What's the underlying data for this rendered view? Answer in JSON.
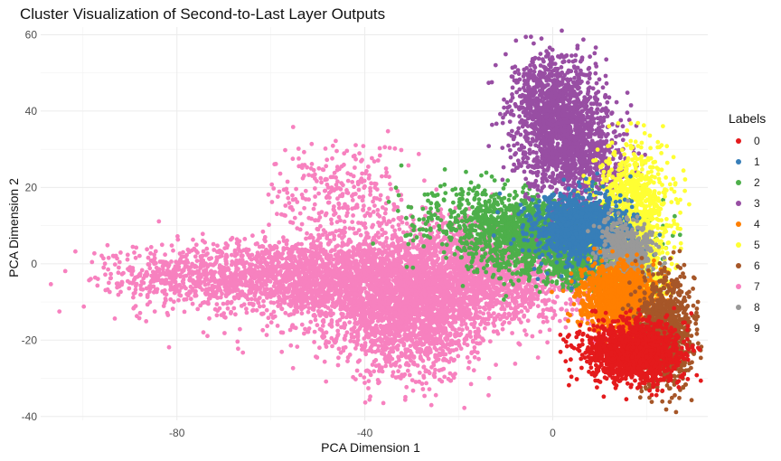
{
  "chart_data": {
    "type": "scatter",
    "title": "Cluster Visualization of Second-to-Last Layer Outputs",
    "xlabel": "PCA Dimension 1",
    "ylabel": "PCA Dimension 2",
    "xlim": [
      -109,
      33
    ],
    "ylim": [
      -41,
      62
    ],
    "x_ticks": [
      -80,
      -40,
      0
    ],
    "y_ticks": [
      -40,
      -20,
      0,
      20,
      40,
      60
    ],
    "grid": true,
    "legend": {
      "title": "Labels",
      "placement": "right",
      "entries": [
        "0",
        "1",
        "2",
        "3",
        "4",
        "5",
        "6",
        "7",
        "8",
        "9"
      ]
    },
    "colors": {
      "0": "#E41A1C",
      "1": "#377EB8",
      "2": "#4DAF4A",
      "3": "#984EA3",
      "4": "#FF7F00",
      "5": "#FFFF33",
      "6": "#A65628",
      "7": "#F781BF",
      "8": "#999999",
      "9": "#FFFFFF"
    },
    "series": [
      {
        "name": "7",
        "clusters": [
          {
            "cx": -60,
            "cy": -3,
            "sx": 14,
            "sy": 4.5,
            "n": 1300
          },
          {
            "cx": -35,
            "cy": -6,
            "sx": 13,
            "sy": 7,
            "n": 2200
          },
          {
            "cx": -30,
            "cy": -17,
            "sx": 7,
            "sy": 7,
            "n": 900
          },
          {
            "cx": -15,
            "cy": -4,
            "sx": 12,
            "sy": 6,
            "n": 1300
          },
          {
            "cx": -45,
            "cy": 18,
            "sx": 7,
            "sy": 7,
            "n": 280
          },
          {
            "cx": -80,
            "cy": -4,
            "sx": 9,
            "sy": 4,
            "n": 200
          },
          {
            "cx": -18,
            "cy": 5,
            "sx": 8,
            "sy": 5,
            "n": 300
          }
        ]
      },
      {
        "name": "2",
        "clusters": [
          {
            "cx": -2,
            "cy": 7,
            "sx": 9,
            "sy": 5,
            "n": 1500
          },
          {
            "cx": 8,
            "cy": -1,
            "sx": 5,
            "sy": 3,
            "n": 400
          },
          {
            "cx": -15,
            "cy": 13,
            "sx": 8,
            "sy": 4,
            "n": 250
          }
        ]
      },
      {
        "name": "3",
        "clusters": [
          {
            "cx": 2,
            "cy": 36,
            "sx": 5,
            "sy": 8,
            "n": 1400
          },
          {
            "cx": 7,
            "cy": 25,
            "sx": 5,
            "sy": 5,
            "n": 300
          },
          {
            "cx": -2,
            "cy": 47,
            "sx": 3,
            "sy": 4,
            "n": 200
          }
        ]
      },
      {
        "name": "5",
        "clusters": [
          {
            "cx": 17,
            "cy": 12,
            "sx": 4,
            "sy": 9,
            "n": 1100
          },
          {
            "cx": 19,
            "cy": -1,
            "sx": 3,
            "sy": 4,
            "n": 250
          }
        ]
      },
      {
        "name": "1",
        "clusters": [
          {
            "cx": 6,
            "cy": 9,
            "sx": 5,
            "sy": 4.5,
            "n": 1300
          }
        ]
      },
      {
        "name": "8",
        "clusters": [
          {
            "cx": 16,
            "cy": 3,
            "sx": 3,
            "sy": 4,
            "n": 500
          }
        ]
      },
      {
        "name": "4",
        "clusters": [
          {
            "cx": 14,
            "cy": -9,
            "sx": 4,
            "sy": 4,
            "n": 1300
          }
        ]
      },
      {
        "name": "6",
        "clusters": [
          {
            "cx": 24,
            "cy": -18,
            "sx": 3,
            "sy": 7,
            "n": 1000
          }
        ]
      },
      {
        "name": "0",
        "clusters": [
          {
            "cx": 17,
            "cy": -23,
            "sx": 5,
            "sy": 4,
            "n": 1500
          }
        ]
      },
      {
        "name": "9",
        "clusters": []
      }
    ]
  }
}
